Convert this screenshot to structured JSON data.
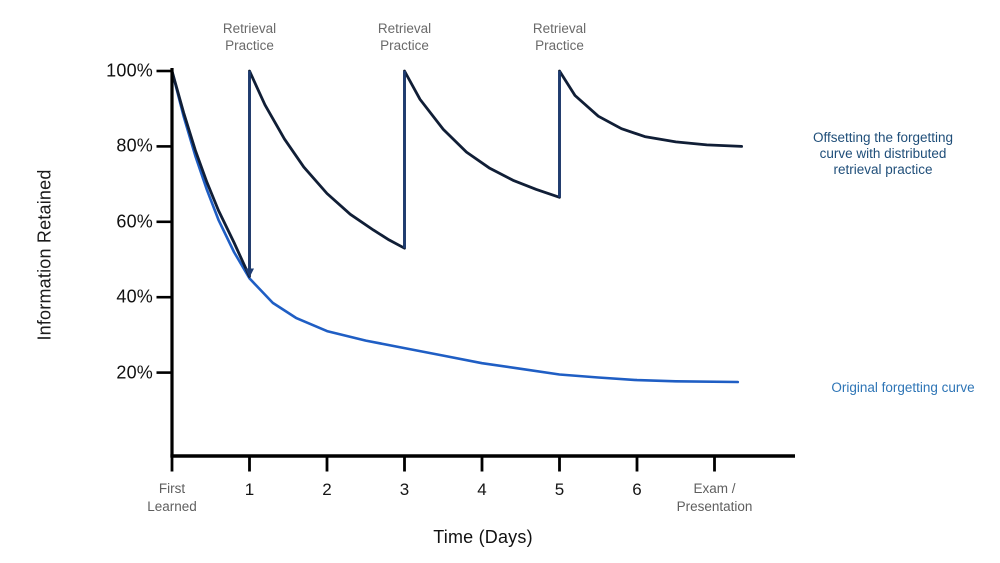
{
  "colors": {
    "background": "#ffffff",
    "axis": "#000000",
    "numeric_tick_text": "#111111",
    "gray_label_text": "#5f5f5f",
    "retrieval_label_text": "#6a6a6a",
    "offsetting_curve": "#101e36",
    "jump_line": "#1e3c72",
    "original_curve": "#1f5ec4",
    "offsetting_label_text": "#1f4e79",
    "original_label_text": "#2e75b6"
  },
  "labels": {
    "offsetting_series": "Offsetting the forgetting\ncurve with distributed\nretrieval practice",
    "original_series": "Original forgetting curve"
  },
  "chart_data": {
    "type": "line",
    "title": "",
    "xlabel": "Time (Days)",
    "ylabel": "Information Retained",
    "xlim": [
      0,
      8.05
    ],
    "ylim": [
      0,
      100
    ],
    "grid": false,
    "legend_position": "right-side text annotations",
    "y_ticks": [
      {
        "value": 100,
        "label": "100%"
      },
      {
        "value": 80,
        "label": "80%"
      },
      {
        "value": 60,
        "label": "60%"
      },
      {
        "value": 40,
        "label": "40%"
      },
      {
        "value": 20,
        "label": "20%"
      }
    ],
    "x_ticks": [
      {
        "value": 0,
        "label": "First\nLearned",
        "style": "gray"
      },
      {
        "value": 1,
        "label": "1",
        "style": "number"
      },
      {
        "value": 2,
        "label": "2",
        "style": "number"
      },
      {
        "value": 3,
        "label": "3",
        "style": "number"
      },
      {
        "value": 4,
        "label": "4",
        "style": "number"
      },
      {
        "value": 5,
        "label": "5",
        "style": "number"
      },
      {
        "value": 6,
        "label": "6",
        "style": "number"
      },
      {
        "value": 7,
        "label": "Exam /\nPresentation",
        "style": "gray"
      }
    ],
    "annotations": [
      {
        "x": 1,
        "label": "Retrieval\nPractice"
      },
      {
        "x": 3,
        "label": "Retrieval\nPractice"
      },
      {
        "x": 5,
        "label": "Retrieval\nPractice"
      }
    ],
    "series": [
      {
        "name": "Offsetting the forgetting curve with distributed retrieval practice",
        "color": "#101e36",
        "points": [
          [
            0,
            100
          ],
          [
            0.15,
            89
          ],
          [
            0.3,
            79
          ],
          [
            0.45,
            70.5
          ],
          [
            0.6,
            63
          ],
          [
            0.8,
            54.5
          ],
          [
            1,
            45.5
          ],
          [
            1,
            100
          ],
          [
            1.2,
            91
          ],
          [
            1.45,
            82
          ],
          [
            1.7,
            74.5
          ],
          [
            2,
            67.5
          ],
          [
            2.3,
            62
          ],
          [
            2.6,
            57.8
          ],
          [
            2.8,
            55.2
          ],
          [
            3,
            53
          ],
          [
            3,
            100
          ],
          [
            3.2,
            92.5
          ],
          [
            3.5,
            84.5
          ],
          [
            3.8,
            78.5
          ],
          [
            4.1,
            74.2
          ],
          [
            4.4,
            71
          ],
          [
            4.7,
            68.6
          ],
          [
            5,
            66.5
          ],
          [
            5,
            100
          ],
          [
            5.2,
            93.5
          ],
          [
            5.5,
            88
          ],
          [
            5.8,
            84.7
          ],
          [
            6.1,
            82.6
          ],
          [
            6.5,
            81.2
          ],
          [
            6.9,
            80.4
          ],
          [
            7.35,
            80
          ]
        ]
      },
      {
        "name": "Original forgetting curve",
        "color": "#1f5ec4",
        "points": [
          [
            0,
            100
          ],
          [
            0.15,
            88
          ],
          [
            0.3,
            77.5
          ],
          [
            0.45,
            68.5
          ],
          [
            0.6,
            60.5
          ],
          [
            0.8,
            52
          ],
          [
            1,
            45
          ],
          [
            1.3,
            38.5
          ],
          [
            1.6,
            34.5
          ],
          [
            2,
            31
          ],
          [
            2.5,
            28.5
          ],
          [
            3,
            26.5
          ],
          [
            3.5,
            24.5
          ],
          [
            4,
            22.5
          ],
          [
            4.5,
            21
          ],
          [
            5,
            19.5
          ],
          [
            5.5,
            18.7
          ],
          [
            6,
            18
          ],
          [
            6.5,
            17.7
          ],
          [
            7.3,
            17.5
          ]
        ]
      }
    ],
    "retrieval_jumps": [
      {
        "x": 1,
        "from": 45.5,
        "to": 100,
        "arrow": true
      },
      {
        "x": 3,
        "from": 53,
        "to": 100,
        "arrow": false
      },
      {
        "x": 5,
        "from": 66.5,
        "to": 100,
        "arrow": false
      }
    ]
  }
}
